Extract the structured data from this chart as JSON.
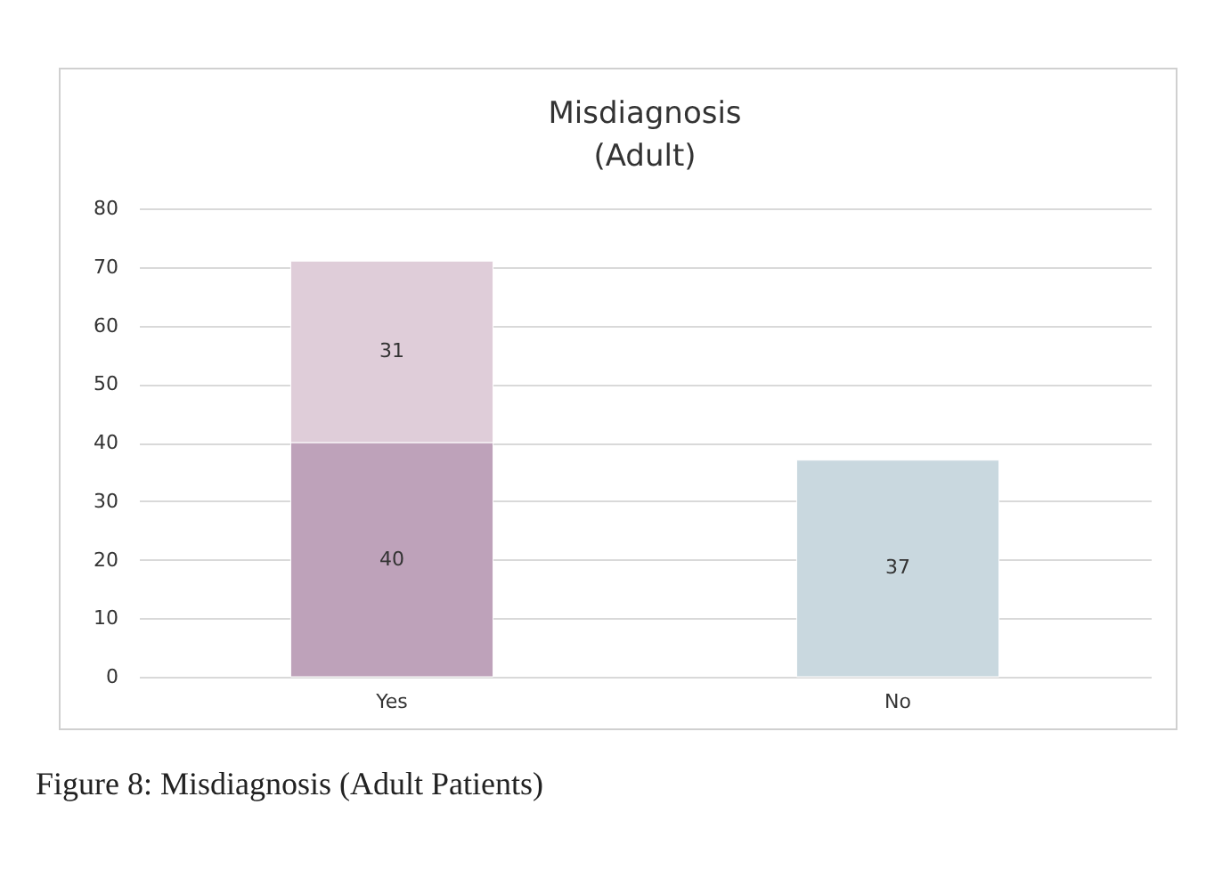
{
  "chart_data": {
    "type": "bar",
    "title": "Misdiagnosis\n(Adult)",
    "categories": [
      "Yes",
      "No"
    ],
    "stacked": true,
    "series": [
      {
        "colors": [
          "#bea2ba",
          "#c9d8df"
        ],
        "values": [
          40,
          37
        ]
      },
      {
        "color": "#dfcdd9",
        "values": [
          31,
          null
        ]
      }
    ],
    "ylim": [
      0,
      80
    ],
    "yticks": [
      0,
      10,
      20,
      30,
      40,
      50,
      60,
      70,
      80
    ],
    "grid": "y",
    "data_labels": true,
    "annotations": [
      "Figure 8: Misdiagnosis (Adult Patients)"
    ]
  }
}
